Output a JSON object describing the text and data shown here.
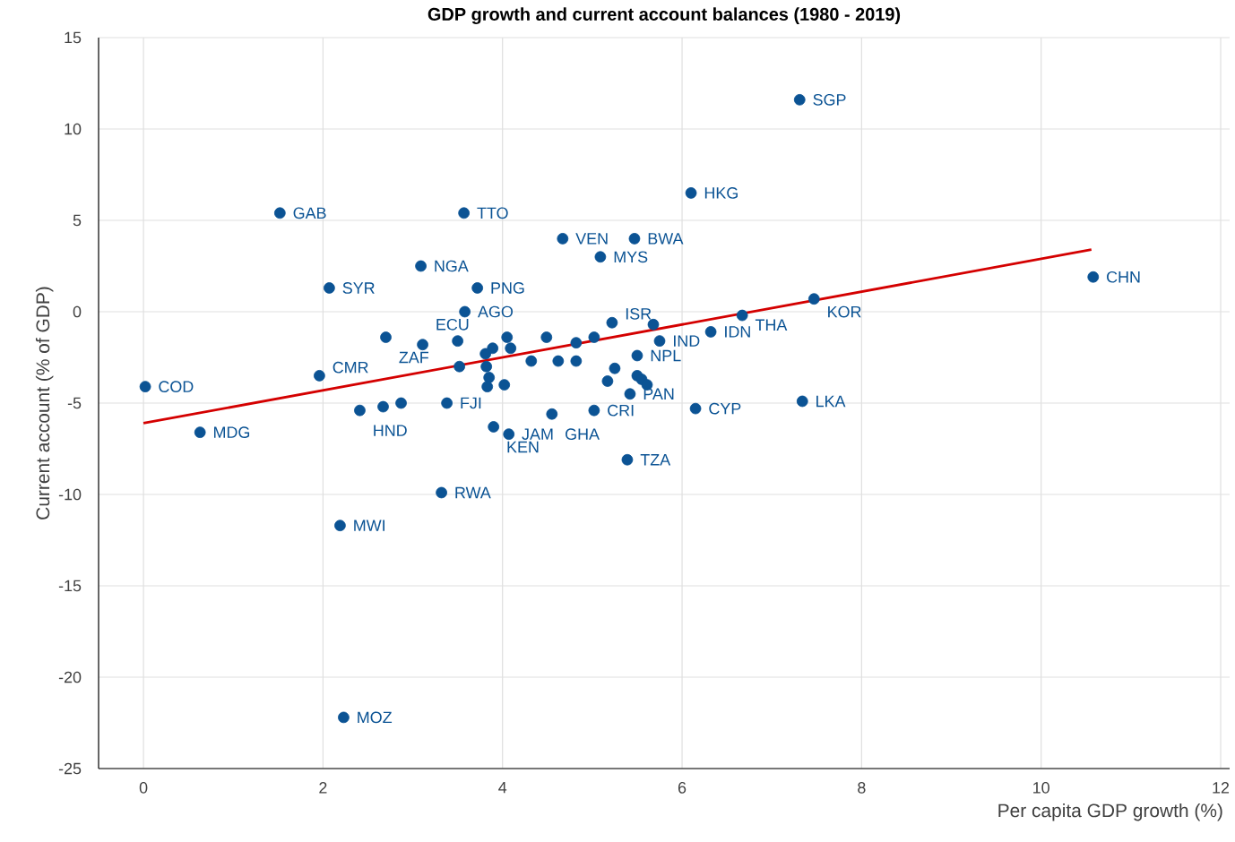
{
  "chart_data": {
    "type": "scatter",
    "title": "GDP growth and current account balances (1980 - 2019)",
    "xlabel": "Per capita GDP growth (%)",
    "ylabel": "Current account (% of GDP)",
    "xlim": [
      -0.5,
      12.1
    ],
    "ylim": [
      -25,
      15
    ],
    "xticks": [
      0,
      2,
      4,
      6,
      8,
      10,
      12
    ],
    "yticks": [
      -25,
      -20,
      -15,
      -10,
      -5,
      0,
      5,
      10,
      15
    ],
    "grid": true,
    "marker": "circle",
    "series": [
      {
        "color": "#0b5394",
        "x": [
          7.31,
          6.1,
          10.58,
          7.47,
          6.67,
          6.32,
          7.34,
          6.15,
          1.52,
          3.57,
          4.67,
          5.47,
          5.09,
          3.09,
          2.07,
          3.72,
          3.58,
          2.7,
          3.11,
          1.96,
          0.02,
          0.63,
          2.19,
          2.23,
          3.32,
          5.39,
          3.9,
          4.07,
          4.55,
          5.02,
          2.41,
          2.67,
          2.87,
          3.38,
          3.5,
          3.81,
          3.89,
          4.05,
          4.09,
          3.52,
          3.82,
          3.85,
          3.83,
          4.02,
          4.32,
          4.49,
          4.82,
          5.02,
          5.22,
          5.68,
          5.75,
          4.62,
          4.82,
          5.25,
          5.17,
          5.5,
          5.5,
          5.55,
          5.61,
          5.42
        ],
        "values": [
          11.6,
          6.5,
          1.9,
          0.7,
          -0.2,
          -1.1,
          -4.9,
          -5.3,
          5.4,
          5.4,
          4.0,
          4.0,
          3.0,
          2.5,
          1.3,
          1.3,
          0,
          -1.4,
          -1.8,
          -3.5,
          -4.1,
          -6.6,
          -11.7,
          -22.2,
          -9.9,
          -8.1,
          -6.3,
          -6.7,
          -5.6,
          -5.4,
          -5.4,
          -5.2,
          -5.0,
          -5.0,
          -1.6,
          -2.3,
          -2.0,
          -1.4,
          -2.0,
          -3.0,
          -3.0,
          -3.6,
          -4.1,
          -4.0,
          -2.7,
          -1.4,
          -1.7,
          -1.4,
          -0.6,
          -0.7,
          -1.6,
          -2.7,
          -2.7,
          -3.1,
          -3.8,
          -2.4,
          -3.5,
          -3.7,
          -4.0,
          -4.5
        ],
        "value_labels": [
          "SGP",
          "HKG",
          "CHN",
          "KOR",
          "THA",
          "IDN",
          "LKA",
          "CYP",
          "GAB",
          "TTO",
          "VEN",
          "BWA",
          "MYS",
          "NGA",
          "SYR",
          "PNG",
          "AGO",
          "ZAF",
          "ECU",
          "CMR",
          "COD",
          "MDG",
          "MWI",
          "MOZ",
          "RWA",
          "TZA",
          "KEN",
          "JAM",
          "GHA",
          "CRI",
          "HND",
          null,
          null,
          "FJI",
          null,
          null,
          null,
          null,
          null,
          null,
          null,
          null,
          null,
          null,
          null,
          null,
          null,
          null,
          "ISR",
          null,
          "IND",
          null,
          null,
          null,
          null,
          "NPL",
          null,
          null,
          null,
          "PAN"
        ]
      },
      {
        "type": "line",
        "color": "#d40000",
        "marker": "none",
        "x": [
          0,
          10.56
        ],
        "values": [
          -6.1,
          3.4
        ]
      }
    ]
  }
}
